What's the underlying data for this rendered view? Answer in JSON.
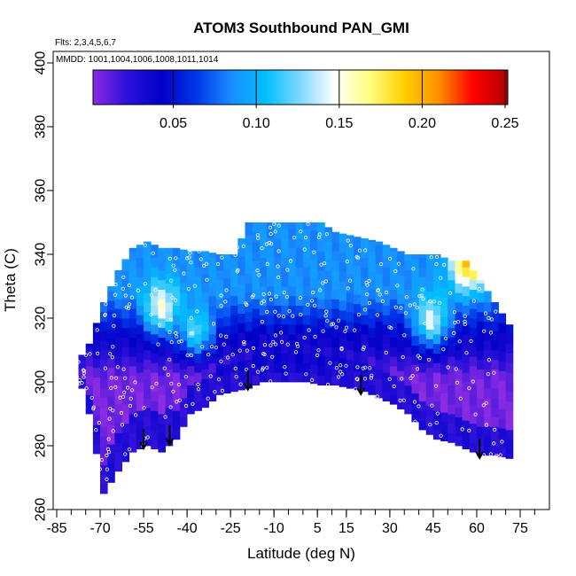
{
  "chart_data": {
    "type": "heatmap",
    "title": "ATOM3 Southbound PAN_GMI",
    "flights_note": "Flts: 2,3,4,5,6,7",
    "dates_note": "MMDD: 1001,1004,1006,1008,1011,1014",
    "xlabel": "Latitude (deg N)",
    "ylabel": "Theta (C)",
    "xlim": [
      -90,
      90
    ],
    "ylim": [
      260,
      405
    ],
    "x_ticks": [
      -85,
      -70,
      -55,
      -40,
      -25,
      -10,
      5,
      15,
      30,
      45,
      60,
      75
    ],
    "y_ticks": [
      260,
      280,
      300,
      320,
      340,
      360,
      380,
      400
    ],
    "colorbar": {
      "range": [
        0.0,
        0.25
      ],
      "ticks": [
        "0.05",
        "0.10",
        "0.15",
        "0.20",
        "0.25"
      ],
      "colors": [
        "#8b2be2",
        "#2b10d8",
        "#0000c8",
        "#0038e8",
        "#1a8cff",
        "#00c0ff",
        "#80d8ff",
        "#ffffff",
        "#ffff80",
        "#ffd000",
        "#ff9000",
        "#ff0000",
        "#b00000"
      ]
    },
    "field": {
      "lat": [
        -80,
        -75,
        -70,
        -65,
        -60,
        -55,
        -50,
        -45,
        -40,
        -35,
        -30,
        -25,
        -20,
        -15,
        -10,
        -5,
        0,
        5,
        10,
        15,
        20,
        25,
        30,
        35,
        40,
        45,
        50,
        55,
        60,
        65,
        70
      ],
      "theta_min": [
        306,
        290,
        265,
        272,
        278,
        280,
        278,
        282,
        290,
        292,
        296,
        297,
        298,
        300,
        300,
        300,
        300,
        299,
        299,
        298,
        297,
        295,
        293,
        290,
        285,
        282,
        281,
        279,
        277,
        277,
        276
      ],
      "theta_max": [
        305,
        312,
        325,
        335,
        342,
        344,
        342,
        342,
        341,
        341,
        340,
        340,
        350,
        350,
        350,
        350,
        350,
        350,
        347,
        346,
        345,
        344,
        342,
        340,
        340,
        340,
        338,
        338,
        332,
        325,
        318
      ],
      "low_layer_value": 0.005,
      "mid_layer_value": 0.035,
      "upper_layer_value": 0.085,
      "features": [
        {
          "lat": -50,
          "theta": 322,
          "value": 0.15
        },
        {
          "lat": -38,
          "theta": 315,
          "value": 0.12
        },
        {
          "lat": 43,
          "theta": 318,
          "value": 0.14
        },
        {
          "lat": 56,
          "theta": 336,
          "value": 0.2
        }
      ]
    },
    "arrows_lat": [
      -55,
      -46,
      -19,
      20,
      61
    ],
    "observation_points_note": "small white circles mark sample locations"
  }
}
